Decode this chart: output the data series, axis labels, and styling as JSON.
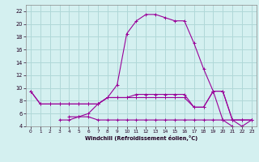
{
  "xlabel": "Windchill (Refroidissement éolien,°C)",
  "x": [
    0,
    1,
    2,
    3,
    4,
    5,
    6,
    7,
    8,
    9,
    10,
    11,
    12,
    13,
    14,
    15,
    16,
    17,
    18,
    19,
    20,
    21,
    22,
    23
  ],
  "series": [
    [
      9.5,
      7.5,
      7.5,
      7.5,
      7.5,
      7.5,
      7.5,
      7.5,
      8.5,
      10.5,
      18.5,
      20.5,
      21.5,
      21.5,
      21.0,
      20.5,
      20.5,
      17.0,
      13.0,
      9.5,
      9.5,
      5.0,
      4.0,
      5.0
    ],
    [
      9.5,
      7.5,
      7.5,
      7.5,
      7.5,
      7.5,
      7.5,
      7.5,
      8.5,
      8.5,
      8.5,
      9.0,
      9.0,
      9.0,
      9.0,
      9.0,
      9.0,
      7.0,
      7.0,
      9.5,
      9.5,
      5.0,
      5.0,
      5.0
    ],
    [
      null,
      null,
      null,
      5.0,
      5.0,
      5.5,
      5.5,
      5.0,
      5.0,
      5.0,
      5.0,
      5.0,
      5.0,
      5.0,
      5.0,
      5.0,
      5.0,
      5.0,
      5.0,
      5.0,
      5.0,
      5.0,
      5.0,
      5.0
    ],
    [
      null,
      null,
      null,
      null,
      5.5,
      5.5,
      6.0,
      7.5,
      8.5,
      8.5,
      8.5,
      8.5,
      8.5,
      8.5,
      8.5,
      8.5,
      8.5,
      7.0,
      7.0,
      9.5,
      5.0,
      4.0,
      null,
      null
    ]
  ],
  "color": "#990099",
  "bg_color": "#d4f0f0",
  "grid_color": "#b0d8d8",
  "ylim": [
    4,
    23
  ],
  "xlim": [
    -0.5,
    23.5
  ],
  "yticks": [
    4,
    6,
    8,
    10,
    12,
    14,
    16,
    18,
    20,
    22
  ],
  "xticks": [
    0,
    1,
    2,
    3,
    4,
    5,
    6,
    7,
    8,
    9,
    10,
    11,
    12,
    13,
    14,
    15,
    16,
    17,
    18,
    19,
    20,
    21,
    22,
    23
  ]
}
